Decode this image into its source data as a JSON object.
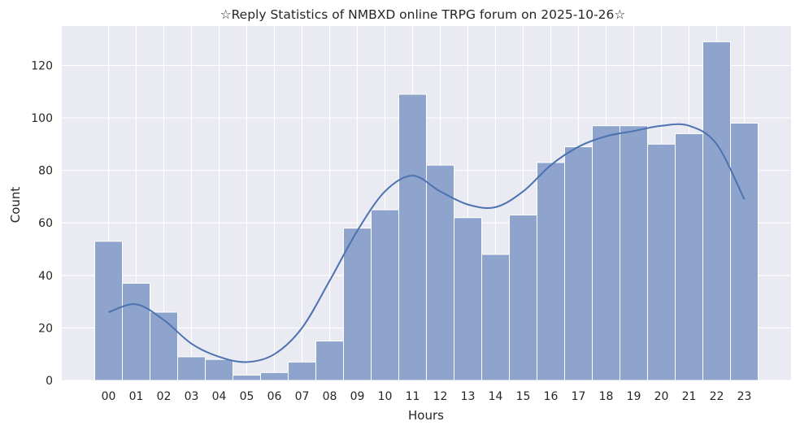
{
  "chart_data": {
    "type": "bar",
    "title": "☆Reply Statistics of NMBXD online TRPG forum on 2025-10-26☆",
    "xlabel": "Hours",
    "ylabel": "Count",
    "categories": [
      "00",
      "01",
      "02",
      "03",
      "04",
      "05",
      "06",
      "07",
      "08",
      "09",
      "10",
      "11",
      "12",
      "13",
      "14",
      "15",
      "16",
      "17",
      "18",
      "19",
      "20",
      "21",
      "22",
      "23"
    ],
    "values": [
      53,
      37,
      26,
      9,
      8,
      2,
      3,
      7,
      15,
      58,
      65,
      109,
      82,
      62,
      48,
      63,
      83,
      89,
      97,
      97,
      90,
      94,
      129,
      98
    ],
    "kde": [
      26,
      29,
      23,
      14,
      9,
      7,
      10,
      20,
      38,
      57,
      72,
      78,
      72,
      67,
      66,
      72,
      82,
      89,
      93,
      95,
      97,
      97,
      90,
      69
    ],
    "yticks": [
      0,
      20,
      40,
      60,
      80,
      100,
      120
    ],
    "ylim": [
      0,
      135
    ],
    "grid": true,
    "colors": {
      "bar_fill": "#8fa4cc",
      "bar_edge": "#ffffff",
      "kde_line": "#4c72b0",
      "plot_background": "#eaeaf2",
      "grid": "#ffffff",
      "text": "#262626"
    }
  }
}
